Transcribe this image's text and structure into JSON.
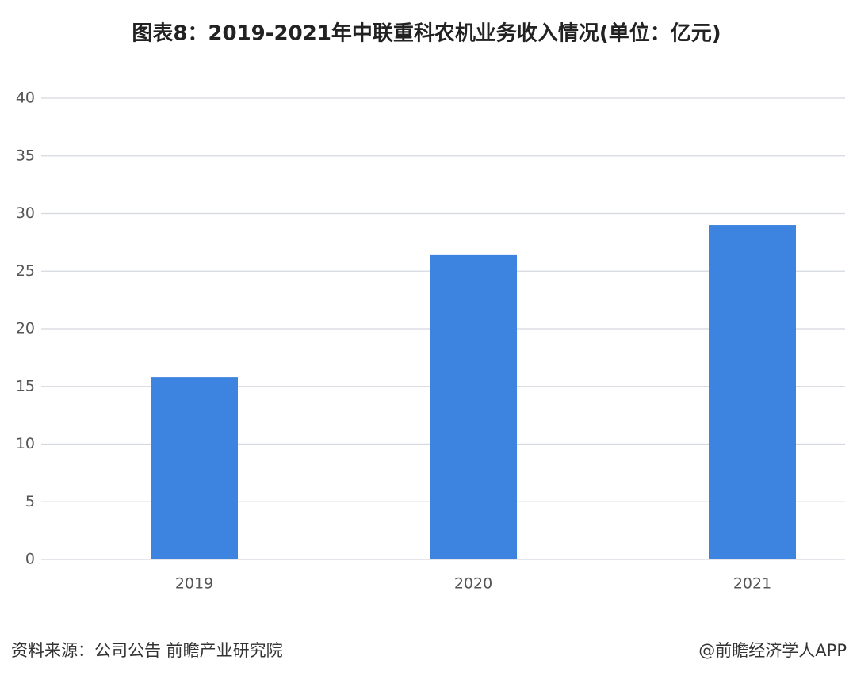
{
  "chart_data": {
    "type": "bar",
    "title": "图表8：2019-2021年中联重科农机业务收入情况(单位：亿元)",
    "categories": [
      "2019",
      "2020",
      "2021"
    ],
    "values": [
      15.8,
      26.4,
      29.0
    ],
    "color": "#3d84e0",
    "ylim": [
      0,
      40
    ],
    "yticks": [
      0,
      5,
      10,
      15,
      20,
      25,
      30,
      35,
      40
    ],
    "grid": true,
    "source": "资料来源：公司公告 前瞻产业研究院",
    "credit": "@前瞻经济学人APP"
  }
}
